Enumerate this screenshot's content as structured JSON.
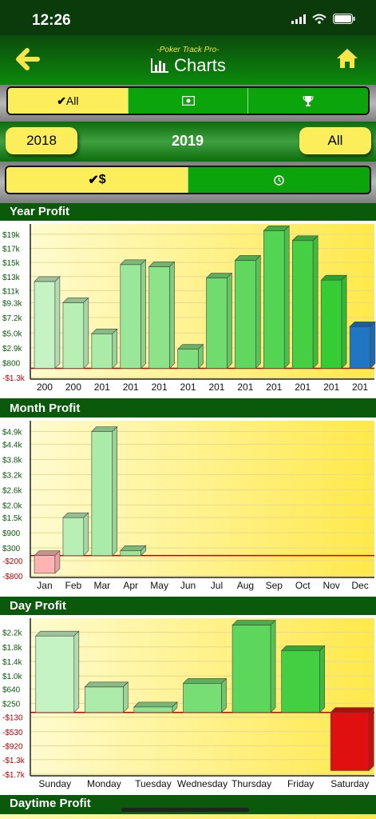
{
  "status_bar": {
    "time": "12:26"
  },
  "nav": {
    "subtitle": "-Poker Track Pro-",
    "title": "Charts"
  },
  "filter_tabs": [
    {
      "label": "All",
      "icon": "check-icon",
      "active": true
    },
    {
      "label": "",
      "icon": "money-icon",
      "active": false
    },
    {
      "label": "",
      "icon": "trophy-icon",
      "active": false
    }
  ],
  "year_selector": {
    "prev": "2018",
    "current": "2019",
    "next": "All"
  },
  "metric_tabs": [
    {
      "label": "$",
      "icon": "check-icon",
      "active": true
    },
    {
      "label": "",
      "icon": "clock-icon",
      "active": false
    }
  ],
  "sections": {
    "year": "Year Profit",
    "month": "Month Profit",
    "day": "Day Profit",
    "daytime": "Daytime Profit"
  },
  "chart_data": [
    {
      "type": "bar",
      "title": "Year Profit",
      "categories": [
        "200",
        "200",
        "201",
        "201",
        "201",
        "201",
        "201",
        "201",
        "201",
        "201",
        "201",
        "201"
      ],
      "values": [
        12300,
        9300,
        4900,
        14700,
        14400,
        2700,
        12800,
        15300,
        19500,
        18100,
        12500,
        5900
      ],
      "y_ticks": [
        "$19k",
        "$17k",
        "$15k",
        "$13k",
        "$11k",
        "$9.3k",
        "$7.2k",
        "$5.0k",
        "$2.9k",
        "$800",
        "-$1.3k"
      ],
      "y_tick_values": [
        19000,
        17000,
        15000,
        13000,
        11000,
        9300,
        7200,
        5000,
        2900,
        800,
        -1300
      ],
      "ylim": [
        -1300,
        20000
      ]
    },
    {
      "type": "bar",
      "title": "Month Profit",
      "categories": [
        "Jan",
        "Feb",
        "Mar",
        "Apr",
        "May",
        "Jun",
        "Jul",
        "Aug",
        "Sep",
        "Oct",
        "Nov",
        "Dec"
      ],
      "values": [
        -700,
        1500,
        4900,
        200,
        0,
        0,
        0,
        0,
        0,
        0,
        0,
        0
      ],
      "y_ticks": [
        "$4.9k",
        "$4.4k",
        "$3.8k",
        "$3.2k",
        "$2.6k",
        "$2.0k",
        "$1.5k",
        "$900",
        "$300",
        "-$200",
        "-$800"
      ],
      "y_tick_values": [
        4900,
        4400,
        3800,
        3200,
        2600,
        2000,
        1500,
        900,
        300,
        -200,
        -800
      ],
      "ylim": [
        -800,
        5200
      ]
    },
    {
      "type": "bar",
      "title": "Day Profit",
      "categories": [
        "Sunday",
        "Monday",
        "Tuesday",
        "Wednesday",
        "Thursday",
        "Friday",
        "Saturday"
      ],
      "values": [
        2100,
        700,
        150,
        800,
        2400,
        1700,
        -1600
      ],
      "y_ticks": [
        "$2.2k",
        "$1.8k",
        "$1.4k",
        "$1.0k",
        "$640",
        "$250",
        "-$130",
        "-$530",
        "-$920",
        "-$1.3k",
        "-$1.7k"
      ],
      "y_tick_values": [
        2200,
        1800,
        1400,
        1000,
        640,
        250,
        -130,
        -530,
        -920,
        -1300,
        -1700
      ],
      "ylim": [
        -1700,
        2500
      ]
    }
  ],
  "colors": {
    "header_green": "#0b5a0b",
    "accent_yellow": "#fbee5a",
    "tab_green": "#0ba40b",
    "negative_red": "#e01010",
    "current_blue": "#1f77c4"
  }
}
